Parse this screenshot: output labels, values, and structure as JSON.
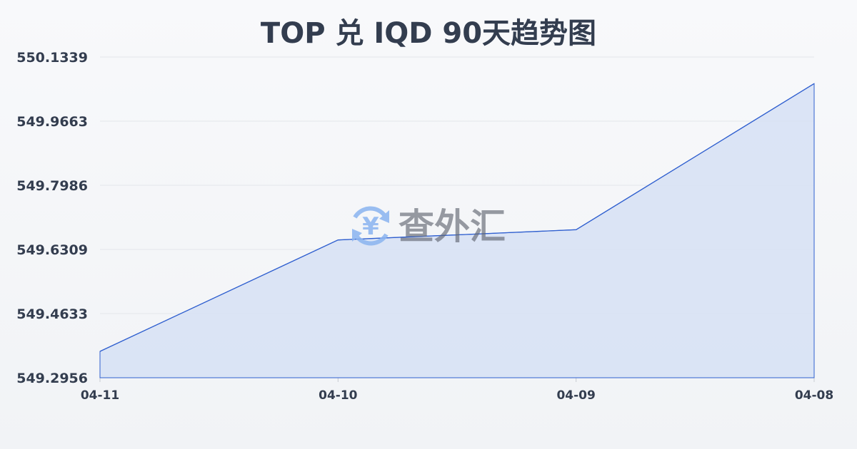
{
  "chart_data": {
    "type": "area",
    "title": "TOP 兑 IQD 90天趋势图",
    "xlabel": "",
    "ylabel": "",
    "categories": [
      "04-11",
      "04-10",
      "04-09",
      "04-08"
    ],
    "series": [
      {
        "values": [
          549.3645,
          549.6557,
          549.6825,
          550.0644
        ]
      }
    ],
    "yticks": [
      "549.2956",
      "549.4633",
      "549.6309",
      "549.7986",
      "549.9663",
      "550.1339"
    ],
    "ylim": [
      549.2956,
      550.1339
    ],
    "grid": true,
    "legend": "none",
    "colors": {
      "line": "#2f5fcf",
      "fill": "#d6e1f5",
      "grid": "#e3e6ea",
      "text": "#333d4f"
    }
  },
  "watermark": {
    "text": "查外汇",
    "icon": "yen-exchange-icon",
    "icon_color": "#8ab4f0"
  }
}
